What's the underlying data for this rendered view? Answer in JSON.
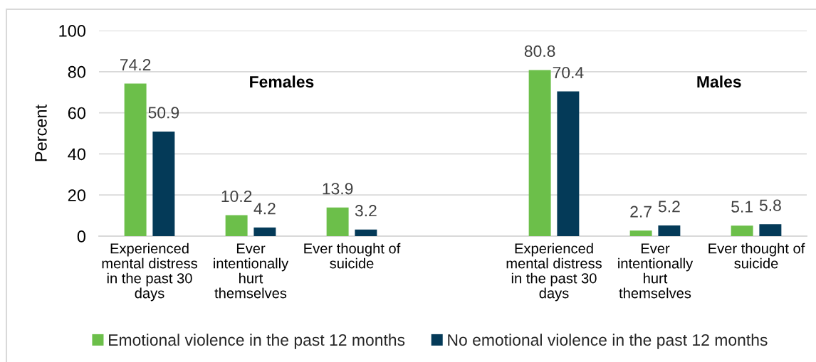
{
  "chart_data": {
    "type": "bar",
    "ylabel": "Percent",
    "categories": [
      "Experienced mental distress in the past 30 days",
      "Ever intentionally hurt themselves",
      "Ever thought of suicide",
      null,
      "Experienced mental distress in the past 30 days",
      "Ever intentionally hurt themselves",
      "Ever thought of suicide"
    ],
    "series": [
      {
        "name": "Emotional violence in the past 12 months",
        "color": "#6cbf4a",
        "values": [
          74.2,
          10.2,
          13.9,
          null,
          80.8,
          2.7,
          5.1
        ]
      },
      {
        "name": "No emotional violence in the past 12 months",
        "color": "#043a58",
        "values": [
          50.9,
          4.2,
          3.2,
          null,
          70.4,
          5.2,
          5.8
        ]
      }
    ],
    "ylim": [
      0,
      100
    ],
    "yticks": [
      0,
      20,
      40,
      60,
      80,
      100
    ],
    "grid": "y",
    "legend": "bottom",
    "data_labels": true,
    "annotations": [
      "Females",
      "Males"
    ]
  }
}
